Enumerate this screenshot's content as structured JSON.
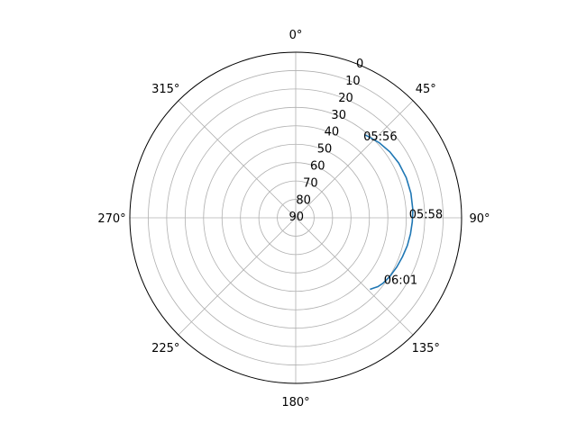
{
  "chart_data": {
    "type": "line",
    "projection": "polar",
    "theta_zero_location": "N",
    "theta_direction": "clockwise",
    "r_axis": "altitude",
    "r_inverted": true,
    "rlim": [
      90,
      0
    ],
    "grid": true,
    "theta_ticks": [
      {
        "deg": 0,
        "label": "0°"
      },
      {
        "deg": 45,
        "label": "45°"
      },
      {
        "deg": 90,
        "label": "90°"
      },
      {
        "deg": 135,
        "label": "135°"
      },
      {
        "deg": 180,
        "label": "180°"
      },
      {
        "deg": 225,
        "label": "225°"
      },
      {
        "deg": 270,
        "label": "270°"
      },
      {
        "deg": 315,
        "label": "315°"
      }
    ],
    "r_ticks": [
      {
        "value": 0,
        "label": "0"
      },
      {
        "value": 10,
        "label": "10"
      },
      {
        "value": 20,
        "label": "20"
      },
      {
        "value": 30,
        "label": "30"
      },
      {
        "value": 40,
        "label": "40"
      },
      {
        "value": 50,
        "label": "50"
      },
      {
        "value": 60,
        "label": "60"
      },
      {
        "value": 70,
        "label": "70"
      },
      {
        "value": 80,
        "label": "80"
      },
      {
        "value": 90,
        "label": "90"
      }
    ],
    "series": [
      {
        "color": "#1f77b4",
        "azimuth_deg": [
          40,
          48,
          55,
          62,
          70,
          78,
          86,
          92,
          98,
          104,
          110,
          116,
          122,
          127,
          130,
          132,
          134
        ],
        "altitude_deg": [
          31.2,
          29.0,
          27.6,
          26.7,
          26.2,
          26.1,
          26.3,
          26.7,
          27.1,
          27.6,
          28.3,
          29.0,
          29.8,
          30.8,
          31.8,
          33.0,
          34.0
        ]
      }
    ],
    "annotations": [
      {
        "text": "05:56",
        "azimuth_deg": 41,
        "altitude_deg": 31
      },
      {
        "text": "05:58",
        "azimuth_deg": 88,
        "altitude_deg": 26.5
      },
      {
        "text": "06:01",
        "azimuth_deg": 124,
        "altitude_deg": 30
      }
    ]
  }
}
